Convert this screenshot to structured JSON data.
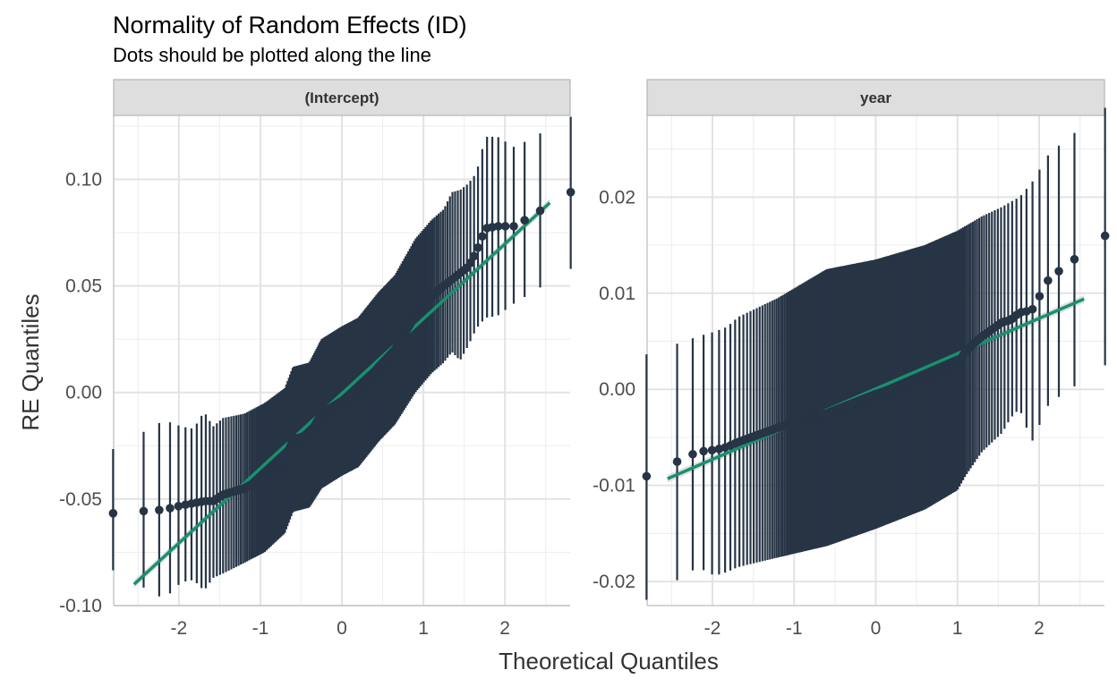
{
  "chart_data": {
    "type": "scatter",
    "title": "Normality of Random Effects (ID)",
    "subtitle": "Dots should be plotted along the line",
    "xlabel": "Theoretical Quantiles",
    "ylabel": "RE Quantiles",
    "grid": true,
    "colors": {
      "points": "#263445",
      "line": "#1a9070",
      "band": "#d9d9d9",
      "strip_bg": "#dedede"
    },
    "panels": [
      {
        "label": "(Intercept)",
        "xlim": [
          -2.8,
          2.8
        ],
        "ylim": [
          -0.1,
          0.13
        ],
        "x_ticks": [
          -2,
          -1,
          0,
          1,
          2
        ],
        "x_tick_labels": [
          "-2",
          "-1",
          "0",
          "1",
          "2"
        ],
        "y_ticks": [
          -0.1,
          -0.05,
          0.0,
          0.05,
          0.1
        ],
        "y_tick_labels": [
          "-0.10",
          "-0.05",
          "0.00",
          "0.05",
          "0.10"
        ],
        "fit_line": {
          "x": [
            -2.55,
            2.55
          ],
          "y": [
            -0.09,
            0.089
          ]
        },
        "anchors": [
          {
            "x": -2.55,
            "y": -0.056,
            "lo": -0.089,
            "hi": -0.021
          },
          {
            "x": -2.18,
            "y": -0.055,
            "lo": -0.097,
            "hi": -0.013
          },
          {
            "x": -1.97,
            "y": -0.053,
            "lo": -0.089,
            "hi": -0.016
          },
          {
            "x": -1.82,
            "y": -0.052,
            "lo": -0.088,
            "hi": -0.017
          },
          {
            "x": -1.69,
            "y": -0.051,
            "lo": -0.093,
            "hi": -0.009
          },
          {
            "x": -1.58,
            "y": -0.051,
            "lo": -0.087,
            "hi": -0.016
          },
          {
            "x": -1.46,
            "y": -0.048,
            "lo": -0.085,
            "hi": -0.012
          },
          {
            "x": -1.2,
            "y": -0.045,
            "lo": -0.08,
            "hi": -0.01
          },
          {
            "x": -0.95,
            "y": -0.04,
            "lo": -0.075,
            "hi": -0.005
          },
          {
            "x": -0.7,
            "y": -0.032,
            "lo": -0.066,
            "hi": 0.002
          },
          {
            "x": -0.6,
            "y": -0.022,
            "lo": -0.056,
            "hi": 0.012
          },
          {
            "x": -0.4,
            "y": -0.02,
            "lo": -0.054,
            "hi": 0.014
          },
          {
            "x": -0.25,
            "y": -0.01,
            "lo": -0.045,
            "hi": 0.025
          },
          {
            "x": 0.0,
            "y": -0.004,
            "lo": -0.039,
            "hi": 0.031
          },
          {
            "x": 0.2,
            "y": 0.0,
            "lo": -0.035,
            "hi": 0.035
          },
          {
            "x": 0.45,
            "y": 0.012,
            "lo": -0.023,
            "hi": 0.047
          },
          {
            "x": 0.65,
            "y": 0.02,
            "lo": -0.015,
            "hi": 0.055
          },
          {
            "x": 0.9,
            "y": 0.036,
            "lo": 0.0,
            "hi": 0.072
          },
          {
            "x": 1.1,
            "y": 0.045,
            "lo": 0.009,
            "hi": 0.081
          },
          {
            "x": 1.25,
            "y": 0.05,
            "lo": 0.014,
            "hi": 0.086
          },
          {
            "x": 1.35,
            "y": 0.053,
            "lo": 0.019,
            "hi": 0.094
          },
          {
            "x": 1.45,
            "y": 0.056,
            "lo": 0.015,
            "hi": 0.095
          },
          {
            "x": 1.55,
            "y": 0.059,
            "lo": 0.022,
            "hi": 0.098
          },
          {
            "x": 1.65,
            "y": 0.066,
            "lo": 0.03,
            "hi": 0.103
          },
          {
            "x": 1.76,
            "y": 0.077,
            "lo": 0.035,
            "hi": 0.12
          },
          {
            "x": 1.91,
            "y": 0.078,
            "lo": 0.036,
            "hi": 0.12
          },
          {
            "x": 2.12,
            "y": 0.078,
            "lo": 0.042,
            "hi": 0.115
          },
          {
            "x": 2.55,
            "y": 0.088,
            "lo": 0.052,
            "hi": 0.124
          }
        ]
      },
      {
        "label": "year",
        "xlim": [
          -2.8,
          2.8
        ],
        "ylim": [
          -0.0225,
          0.0285
        ],
        "x_ticks": [
          -2,
          -1,
          0,
          1,
          2
        ],
        "x_tick_labels": [
          "-2",
          "-1",
          "0",
          "1",
          "2"
        ],
        "y_ticks": [
          -0.02,
          -0.01,
          0.0,
          0.01,
          0.02
        ],
        "y_tick_labels": [
          "-0.02",
          "-0.01",
          "0.00",
          "0.01",
          "0.02"
        ],
        "fit_line": {
          "x": [
            -2.55,
            2.55
          ],
          "y": [
            -0.0093,
            0.0094
          ]
        },
        "anchors": [
          {
            "x": -2.55,
            "y": -0.008,
            "lo": -0.0205,
            "hi": 0.0044
          },
          {
            "x": -2.18,
            "y": -0.0065,
            "lo": -0.0185,
            "hi": 0.0055
          },
          {
            "x": -1.97,
            "y": -0.0063,
            "lo": -0.0194,
            "hi": 0.006
          },
          {
            "x": -1.82,
            "y": -0.006,
            "lo": -0.019,
            "hi": 0.0065
          },
          {
            "x": -1.69,
            "y": -0.0055,
            "lo": -0.0185,
            "hi": 0.0075
          },
          {
            "x": -1.2,
            "y": -0.004,
            "lo": -0.0175,
            "hi": 0.0095
          },
          {
            "x": -0.6,
            "y": -0.0025,
            "lo": -0.0163,
            "hi": 0.0125
          },
          {
            "x": 0.0,
            "y": -0.0005,
            "lo": -0.0145,
            "hi": 0.0135
          },
          {
            "x": 0.6,
            "y": 0.0012,
            "lo": -0.0125,
            "hi": 0.015
          },
          {
            "x": 1.0,
            "y": 0.0025,
            "lo": -0.0105,
            "hi": 0.0165
          },
          {
            "x": 1.1,
            "y": 0.004,
            "lo": -0.009,
            "hi": 0.017
          },
          {
            "x": 1.3,
            "y": 0.0055,
            "lo": -0.0065,
            "hi": 0.018
          },
          {
            "x": 1.55,
            "y": 0.007,
            "lo": -0.0045,
            "hi": 0.019
          },
          {
            "x": 1.65,
            "y": 0.0072,
            "lo": -0.003,
            "hi": 0.0195
          },
          {
            "x": 1.76,
            "y": 0.008,
            "lo": -0.002,
            "hi": 0.02
          },
          {
            "x": 1.91,
            "y": 0.0082,
            "lo": -0.0055,
            "hi": 0.0215
          },
          {
            "x": 2.12,
            "y": 0.0115,
            "lo": -0.0015,
            "hi": 0.0245
          },
          {
            "x": 2.55,
            "y": 0.0143,
            "lo": 0.001,
            "hi": 0.0275
          }
        ]
      }
    ]
  }
}
